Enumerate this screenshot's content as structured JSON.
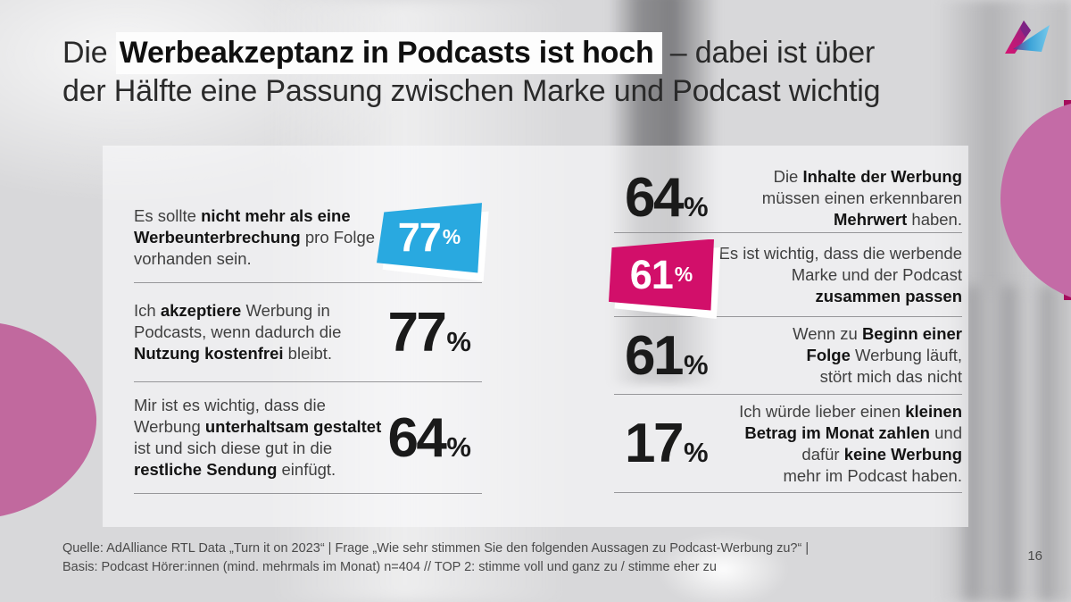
{
  "colors": {
    "accent_blue": "#29a9e0",
    "accent_pink": "#d20f6a",
    "blob_pink": "#c1699e",
    "strip_magenta": "#a50d5d"
  },
  "logo": {
    "name": "ad-alliance-logo"
  },
  "title": {
    "segments": [
      {
        "t": "Die ",
        "b": false,
        "h": false
      },
      {
        "t": "Werbeakzeptanz in Podcasts ist hoch",
        "b": true,
        "h": true
      },
      {
        "t": " – dabei ist über\nder Hälfte eine Passung zwischen Marke und Podcast wichtig",
        "b": false,
        "h": false
      }
    ]
  },
  "stats_left": [
    {
      "value": "77",
      "unit": "%",
      "badge": "blue",
      "segments": [
        {
          "t": "Es sollte ",
          "b": false
        },
        {
          "t": "nicht mehr als eine\nWerbeunterbrechung",
          "b": true
        },
        {
          "t": " pro Folge\nvorhanden sein.",
          "b": false
        }
      ]
    },
    {
      "value": "77",
      "unit": "%",
      "badge": null,
      "segments": [
        {
          "t": "Ich ",
          "b": false
        },
        {
          "t": "akzeptiere",
          "b": true
        },
        {
          "t": " Werbung in\nPodcasts, wenn dadurch die\n",
          "b": false
        },
        {
          "t": "Nutzung kostenfrei",
          "b": true
        },
        {
          "t": " bleibt.",
          "b": false
        }
      ]
    },
    {
      "value": "64",
      "unit": "%",
      "badge": null,
      "segments": [
        {
          "t": "Mir ist es wichtig, dass die\nWerbung ",
          "b": false
        },
        {
          "t": "unterhaltsam gestaltet",
          "b": true
        },
        {
          "t": "\nist und sich diese gut in die\n",
          "b": false
        },
        {
          "t": "restliche Sendung",
          "b": true
        },
        {
          "t": " einfügt.",
          "b": false
        }
      ]
    }
  ],
  "stats_right": [
    {
      "value": "64",
      "unit": "%",
      "badge": null,
      "segments": [
        {
          "t": "Die ",
          "b": false
        },
        {
          "t": "Inhalte der Werbung",
          "b": true
        },
        {
          "t": "\nmüssen einen erkennbaren\n",
          "b": false
        },
        {
          "t": "Mehrwert",
          "b": true
        },
        {
          "t": " haben.",
          "b": false
        }
      ]
    },
    {
      "value": "61",
      "unit": "%",
      "badge": "pink",
      "segments": [
        {
          "t": "Es ist wichtig, dass die werbende\nMarke und der Podcast\n",
          "b": false
        },
        {
          "t": "zusammen passen",
          "b": true
        }
      ]
    },
    {
      "value": "61",
      "unit": "%",
      "badge": null,
      "segments": [
        {
          "t": "Wenn zu ",
          "b": false
        },
        {
          "t": "Beginn einer\nFolge",
          "b": true
        },
        {
          "t": " Werbung läuft,\nstört mich das nicht",
          "b": false
        }
      ]
    },
    {
      "value": "17",
      "unit": "%",
      "badge": null,
      "segments": [
        {
          "t": "Ich würde lieber einen ",
          "b": false
        },
        {
          "t": "kleinen\nBetrag im Monat zahlen",
          "b": true
        },
        {
          "t": " und\ndafür ",
          "b": false
        },
        {
          "t": "keine Werbung",
          "b": true
        },
        {
          "t": "\nmehr im Podcast haben.",
          "b": false
        }
      ]
    }
  ],
  "footer": {
    "source_line1": "Quelle: AdAlliance RTL Data „Turn it on 2023“ | Frage „Wie sehr stimmen Sie den folgenden Aussagen zu Podcast-Werbung zu?“ |",
    "source_line2": "Basis: Podcast Hörer:innen (mind. mehrmals im Monat) n=404 // TOP 2: stimme voll und ganz zu / stimme eher zu",
    "page_number": "16"
  }
}
